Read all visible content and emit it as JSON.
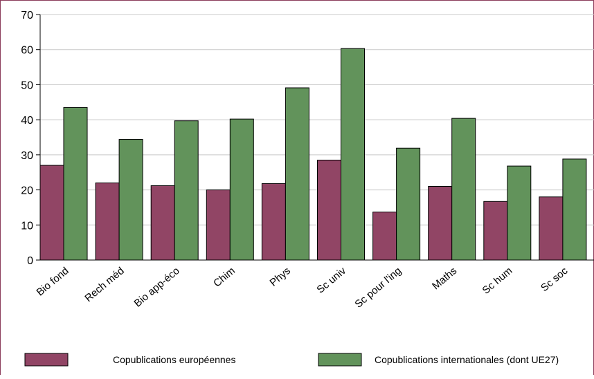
{
  "chart_data": {
    "type": "bar",
    "title": "",
    "xlabel": "",
    "ylabel": "",
    "ylim": [
      0,
      70
    ],
    "yticks": [
      0,
      10,
      20,
      30,
      40,
      50,
      60,
      70
    ],
    "grid": true,
    "legend_position": "bottom",
    "categories": [
      "Bio fond",
      "Rech méd",
      "Bio app-éco",
      "Chim",
      "Phys",
      "Sc univ",
      "Sc pour l'ing",
      "Maths",
      "Sc hum",
      "Sc soc"
    ],
    "series": [
      {
        "name": "Copublications européennes",
        "color": "#914565",
        "values": [
          27.0,
          22.0,
          21.2,
          20.0,
          21.8,
          28.5,
          13.7,
          21.0,
          16.7,
          18.0
        ]
      },
      {
        "name": "Copublications internationales (dont UE27)",
        "color": "#62935b",
        "values": [
          43.5,
          34.4,
          39.7,
          40.2,
          49.1,
          60.3,
          31.9,
          40.4,
          26.8,
          28.8
        ]
      }
    ]
  }
}
